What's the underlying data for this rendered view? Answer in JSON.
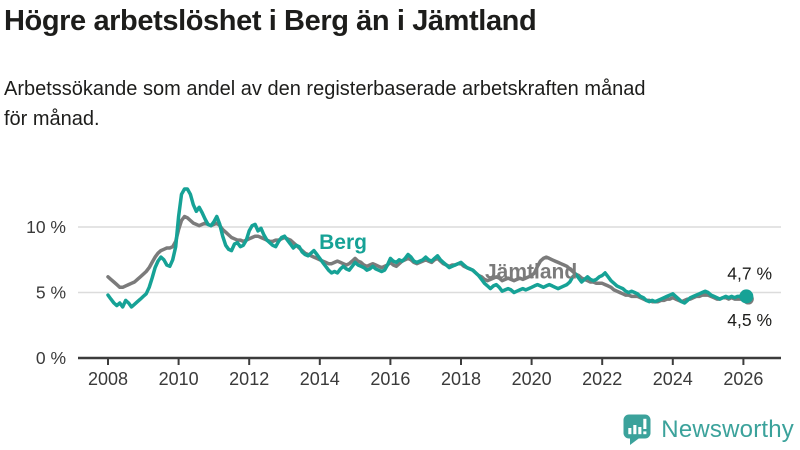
{
  "header": {
    "title": "Högre arbetslöshet i Berg än i Jämtland",
    "subtitle_lines": [
      "Arbetssökande som andel av den registerbaserade arbetskraften månad",
      "för månad."
    ]
  },
  "chart_data": {
    "type": "line",
    "title": "Högre arbetslöshet i Berg än i Jämtland",
    "subtitle": "Arbetssökande som andel av den registerbaserade arbetskraften månad för månad.",
    "x_start_year": 2008,
    "x_step_months": 1,
    "x_ticks": [
      2008,
      2010,
      2012,
      2014,
      2016,
      2018,
      2020,
      2022,
      2024,
      2026
    ],
    "y_ticks": [
      {
        "value": 10,
        "label": "10 %"
      },
      {
        "value": 5,
        "label": "5 %"
      },
      {
        "value": 0,
        "label": "0 %"
      }
    ],
    "ylim": [
      0,
      13.5
    ],
    "xlim": [
      2008,
      2027
    ],
    "grid": "horizontal",
    "legend_position": "inline-labels",
    "axis_color": "#3c3c3c",
    "grid_color": "#dcdcdc",
    "tick_label_color": "#3a3a3a",
    "end_label_color": "#1d1d1b",
    "series": [
      {
        "name": "Jämtland",
        "color": "#7b7b7b",
        "end_label": "4,5 %",
        "label_pos": {
          "year": 2018.68,
          "pct": 6.6
        },
        "values": [
          6.2,
          6.0,
          5.8,
          5.6,
          5.4,
          5.4,
          5.5,
          5.6,
          5.7,
          5.8,
          6.0,
          6.2,
          6.4,
          6.6,
          6.9,
          7.3,
          7.7,
          8.0,
          8.2,
          8.3,
          8.4,
          8.4,
          8.5,
          8.9,
          9.8,
          10.5,
          10.8,
          10.7,
          10.5,
          10.3,
          10.2,
          10.1,
          10.2,
          10.3,
          10.2,
          10.1,
          10.2,
          10.3,
          10.1,
          9.8,
          9.6,
          9.4,
          9.2,
          9.1,
          9.0,
          9.0,
          8.9,
          9.0,
          9.1,
          9.2,
          9.3,
          9.3,
          9.2,
          9.1,
          9.0,
          8.9,
          8.9,
          9.0,
          9.0,
          9.1,
          9.2,
          9.1,
          9.0,
          8.8,
          8.6,
          8.4,
          8.2,
          8.0,
          7.9,
          7.8,
          7.7,
          7.6,
          7.5,
          7.4,
          7.3,
          7.2,
          7.2,
          7.3,
          7.4,
          7.3,
          7.2,
          7.1,
          7.2,
          7.4,
          7.6,
          7.4,
          7.3,
          7.1,
          7.0,
          7.1,
          7.2,
          7.1,
          7.0,
          6.9,
          7.0,
          7.1,
          7.3,
          7.1,
          7.0,
          7.2,
          7.4,
          7.5,
          7.6,
          7.5,
          7.3,
          7.2,
          7.3,
          7.4,
          7.5,
          7.4,
          7.3,
          7.5,
          7.6,
          7.4,
          7.2,
          7.1,
          7.0,
          7.1,
          7.1,
          7.2,
          7.2,
          7.0,
          6.9,
          6.8,
          6.7,
          6.5,
          6.3,
          6.2,
          6.0,
          5.9,
          6.0,
          6.1,
          6.2,
          6.1,
          5.9,
          6.0,
          6.1,
          6.0,
          5.9,
          6.0,
          6.1,
          6.0,
          6.1,
          6.2,
          6.3,
          6.5,
          7.0,
          7.4,
          7.6,
          7.7,
          7.6,
          7.5,
          7.4,
          7.3,
          7.2,
          7.1,
          7.0,
          6.8,
          6.6,
          6.4,
          6.3,
          6.1,
          6.0,
          5.9,
          5.8,
          5.8,
          5.7,
          5.7,
          5.7,
          5.6,
          5.5,
          5.4,
          5.2,
          5.1,
          5.0,
          4.9,
          4.8,
          4.8,
          4.7,
          4.7,
          4.7,
          4.6,
          4.5,
          4.4,
          4.4,
          4.3,
          4.3,
          4.3,
          4.4,
          4.4,
          4.5,
          4.5,
          4.6,
          4.5,
          4.4,
          4.3,
          4.4,
          4.5,
          4.5,
          4.6,
          4.7,
          4.7,
          4.8,
          4.8,
          4.8,
          4.7,
          4.6,
          4.5,
          4.5,
          4.6,
          4.6,
          4.5,
          4.6,
          4.5,
          4.5,
          4.5,
          4.5,
          4.5
        ]
      },
      {
        "name": "Berg",
        "color": "#16a296",
        "end_label": "4,7 %",
        "label_pos": {
          "year": 2013.98,
          "pct": 8.85
        },
        "values": [
          4.8,
          4.5,
          4.2,
          4.0,
          4.2,
          3.9,
          4.4,
          4.2,
          3.9,
          4.1,
          4.3,
          4.5,
          4.7,
          4.9,
          5.4,
          6.1,
          6.9,
          7.4,
          7.7,
          7.5,
          7.1,
          7.0,
          7.5,
          8.5,
          10.8,
          12.5,
          12.9,
          12.9,
          12.5,
          11.7,
          11.2,
          11.5,
          11.1,
          10.6,
          10.2,
          10.1,
          10.4,
          10.8,
          10.2,
          9.3,
          8.6,
          8.3,
          8.2,
          8.7,
          8.8,
          8.5,
          8.6,
          9.0,
          9.7,
          10.1,
          10.2,
          9.7,
          9.9,
          9.4,
          9.0,
          8.8,
          8.6,
          8.5,
          8.9,
          9.2,
          9.3,
          9.0,
          8.7,
          8.4,
          8.6,
          8.5,
          8.1,
          7.9,
          7.8,
          8.0,
          8.2,
          7.9,
          7.6,
          7.3,
          7.0,
          6.7,
          6.5,
          6.6,
          6.5,
          6.8,
          7.0,
          6.8,
          6.7,
          7.0,
          7.3,
          7.1,
          7.0,
          6.9,
          6.7,
          6.8,
          7.0,
          6.8,
          6.7,
          6.6,
          6.7,
          7.1,
          7.6,
          7.4,
          7.3,
          7.5,
          7.4,
          7.6,
          7.9,
          7.7,
          7.4,
          7.3,
          7.4,
          7.5,
          7.7,
          7.5,
          7.4,
          7.6,
          7.8,
          7.5,
          7.3,
          7.1,
          6.9,
          7.0,
          7.1,
          7.2,
          7.3,
          7.1,
          6.9,
          6.8,
          6.7,
          6.5,
          6.3,
          6.0,
          5.7,
          5.5,
          5.3,
          5.5,
          5.6,
          5.4,
          5.1,
          5.2,
          5.3,
          5.2,
          5.0,
          5.1,
          5.2,
          5.3,
          5.2,
          5.3,
          5.4,
          5.5,
          5.6,
          5.5,
          5.4,
          5.5,
          5.6,
          5.5,
          5.4,
          5.3,
          5.4,
          5.5,
          5.6,
          5.8,
          6.2,
          6.4,
          6.1,
          5.8,
          6.0,
          6.2,
          6.0,
          5.9,
          6.0,
          6.2,
          6.3,
          6.5,
          6.2,
          5.9,
          5.7,
          5.5,
          5.4,
          5.3,
          5.1,
          5.0,
          5.1,
          5.0,
          4.9,
          4.7,
          4.6,
          4.4,
          4.3,
          4.4,
          4.3,
          4.4,
          4.5,
          4.6,
          4.7,
          4.8,
          4.9,
          4.7,
          4.5,
          4.3,
          4.2,
          4.4,
          4.6,
          4.7,
          4.8,
          4.9,
          5.0,
          5.1,
          5.0,
          4.8,
          4.7,
          4.6,
          4.5,
          4.6,
          4.7,
          4.6,
          4.7,
          4.6,
          4.7,
          4.7,
          4.7,
          4.7
        ]
      }
    ]
  },
  "footer": {
    "brand": "Newsworthy",
    "brand_color": "#3ba29b",
    "logo_icon": "speech-bubble-bar-chart-exclamation"
  }
}
